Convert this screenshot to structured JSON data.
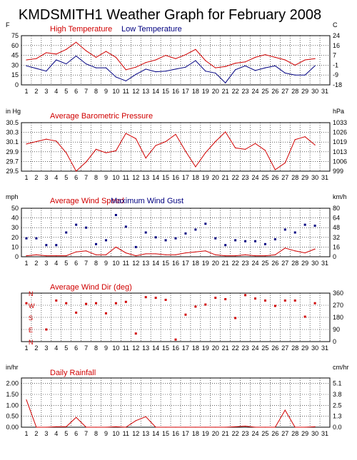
{
  "page": {
    "title": "KMDSMITH1 Weather Graph for February 2008"
  },
  "chart_data": [
    {
      "type": "line",
      "title": "",
      "legend": [
        {
          "name": "High Temperature",
          "color": "#d00000"
        },
        {
          "name": "Low Temperature",
          "color": "#000080"
        }
      ],
      "left_unit": "F",
      "right_unit": "C",
      "ylim": [
        0,
        75
      ],
      "y_ticks": [
        "0",
        "15",
        "30",
        "45",
        "60",
        "75"
      ],
      "right_ticks": [
        "-18",
        "-9",
        "-1",
        "7",
        "16",
        "24"
      ],
      "x": [
        1,
        2,
        3,
        4,
        5,
        6,
        7,
        8,
        9,
        10,
        11,
        12,
        13,
        14,
        15,
        16,
        17,
        18,
        19,
        20,
        21,
        22,
        23,
        24,
        25,
        26,
        27,
        28,
        29,
        30
      ],
      "x_ticks": [
        "1",
        "2",
        "3",
        "4",
        "5",
        "6",
        "7",
        "8",
        "9",
        "10",
        "11",
        "12",
        "13",
        "14",
        "15",
        "16",
        "17",
        "18",
        "19",
        "20",
        "21",
        "22",
        "23",
        "24",
        "25",
        "26",
        "27",
        "28",
        "29",
        "30",
        "31"
      ],
      "grid": true,
      "series": [
        {
          "name": "High Temperature",
          "color": "#d00000",
          "style": "line",
          "values": [
            38,
            40,
            49,
            47,
            54,
            65,
            52,
            42,
            51,
            42,
            23,
            27,
            34,
            38,
            45,
            40,
            46,
            54,
            37,
            26,
            28,
            33,
            35,
            42,
            46,
            42,
            38,
            30,
            38,
            40
          ]
        },
        {
          "name": "Low Temperature",
          "color": "#000080",
          "style": "line",
          "values": [
            29,
            25,
            21,
            38,
            32,
            44,
            32,
            26,
            26,
            12,
            6,
            16,
            24,
            20,
            21,
            24,
            27,
            37,
            21,
            18,
            3,
            23,
            29,
            22,
            26,
            29,
            18,
            15,
            15,
            29
          ]
        }
      ]
    },
    {
      "type": "line",
      "title": "",
      "legend": [
        {
          "name": "Average Barometric Pressure",
          "color": "#d00000"
        }
      ],
      "left_unit": "in Hg",
      "right_unit": "hPa",
      "ylim": [
        29.5,
        30.5
      ],
      "y_ticks": [
        "29.5",
        "29.7",
        "29.9",
        "30.1",
        "30.3",
        "30.5"
      ],
      "right_ticks": [
        "999",
        "1006",
        "1013",
        "1019",
        "1026",
        "1033"
      ],
      "x": [
        1,
        2,
        3,
        4,
        5,
        6,
        7,
        8,
        9,
        10,
        11,
        12,
        13,
        14,
        15,
        16,
        17,
        18,
        19,
        20,
        21,
        22,
        23,
        24,
        25,
        26,
        27,
        28,
        29,
        30
      ],
      "x_ticks": [
        "1",
        "2",
        "3",
        "4",
        "5",
        "6",
        "7",
        "8",
        "9",
        "10",
        "11",
        "12",
        "13",
        "14",
        "15",
        "16",
        "17",
        "18",
        "19",
        "20",
        "21",
        "22",
        "23",
        "24",
        "25",
        "26",
        "27",
        "28",
        "29",
        "30",
        "31"
      ],
      "grid": true,
      "series": [
        {
          "name": "Average Barometric Pressure",
          "color": "#d00000",
          "style": "line",
          "values": [
            30.06,
            30.11,
            30.16,
            30.12,
            29.88,
            29.5,
            29.69,
            29.95,
            29.88,
            29.92,
            30.28,
            30.17,
            29.77,
            30.03,
            30.11,
            30.26,
            29.91,
            29.59,
            29.88,
            30.11,
            30.31,
            29.98,
            29.95,
            30.07,
            29.93,
            29.53,
            29.67,
            30.15,
            30.21,
            30.04
          ]
        }
      ]
    },
    {
      "type": "line",
      "title": "",
      "legend": [
        {
          "name": "Average Wind Speed",
          "color": "#d00000"
        },
        {
          "name": "Maximum Wind Gust",
          "color": "#000080"
        }
      ],
      "left_unit": "mph",
      "right_unit": "km/h",
      "ylim": [
        0,
        50
      ],
      "y_ticks": [
        "0",
        "10",
        "20",
        "30",
        "40",
        "50"
      ],
      "right_ticks": [
        "0",
        "16",
        "32",
        "48",
        "64",
        "80"
      ],
      "x": [
        1,
        2,
        3,
        4,
        5,
        6,
        7,
        8,
        9,
        10,
        11,
        12,
        13,
        14,
        15,
        16,
        17,
        18,
        19,
        20,
        21,
        22,
        23,
        24,
        25,
        26,
        27,
        28,
        29,
        30
      ],
      "x_ticks": [
        "1",
        "2",
        "3",
        "4",
        "5",
        "6",
        "7",
        "8",
        "9",
        "10",
        "11",
        "12",
        "13",
        "14",
        "15",
        "16",
        "17",
        "18",
        "19",
        "20",
        "21",
        "22",
        "23",
        "24",
        "25",
        "26",
        "27",
        "28",
        "29",
        "30",
        "31"
      ],
      "grid": true,
      "series": [
        {
          "name": "Average Wind Speed",
          "color": "#d00000",
          "style": "line",
          "values": [
            1,
            2,
            1,
            1,
            1,
            5,
            6,
            2,
            2,
            10,
            4,
            1,
            3,
            3,
            2,
            2,
            4,
            5,
            6,
            2,
            1,
            1,
            2,
            1,
            1,
            2,
            9,
            6,
            4,
            8
          ]
        },
        {
          "name": "Maximum Wind Gust",
          "color": "#000080",
          "style": "dots",
          "values": [
            19,
            19,
            12,
            12,
            25,
            33,
            30,
            13,
            17,
            43,
            31,
            10,
            25,
            20,
            17,
            19,
            24,
            28,
            34,
            19,
            12,
            17,
            16,
            16,
            13,
            18,
            28,
            25,
            33,
            32
          ]
        }
      ]
    },
    {
      "type": "scatter",
      "title": "",
      "legend": [
        {
          "name": "Average Wind Dir (deg)",
          "color": "#d00000"
        }
      ],
      "left_unit": "",
      "right_unit": "",
      "ylim": [
        0,
        360
      ],
      "y_ticks": [],
      "compass_ticks": [
        "N",
        "W",
        "S",
        "E",
        "N"
      ],
      "right_ticks": [
        "0",
        "90",
        "180",
        "270",
        "360"
      ],
      "x": [
        1,
        2,
        3,
        4,
        5,
        6,
        7,
        8,
        9,
        10,
        11,
        12,
        13,
        14,
        15,
        16,
        17,
        18,
        19,
        20,
        21,
        22,
        23,
        24,
        25,
        26,
        27,
        28,
        29,
        30
      ],
      "x_ticks": [
        "1",
        "2",
        "3",
        "4",
        "5",
        "6",
        "7",
        "8",
        "9",
        "10",
        "11",
        "12",
        "13",
        "14",
        "15",
        "16",
        "17",
        "18",
        "19",
        "20",
        "21",
        "22",
        "23",
        "24",
        "25",
        "26",
        "27",
        "28",
        "29",
        "30",
        "31"
      ],
      "grid": true,
      "series": [
        {
          "name": "Average Wind Dir (deg)",
          "color": "#d00000",
          "style": "dots",
          "values": [
            285,
            null,
            90,
            305,
            285,
            215,
            280,
            285,
            210,
            285,
            295,
            60,
            330,
            325,
            310,
            15,
            200,
            260,
            275,
            325,
            315,
            175,
            345,
            320,
            305,
            265,
            305,
            305,
            185,
            285
          ]
        }
      ]
    },
    {
      "type": "line",
      "title": "",
      "legend": [
        {
          "name": "Daily Rainfall",
          "color": "#d00000"
        }
      ],
      "left_unit": "in/hr",
      "right_unit": "cm/hr",
      "ylim": [
        0,
        2.25
      ],
      "y_ticks": [
        "0.00",
        "0.50",
        "1.00",
        "1.50",
        "2.00"
      ],
      "y_tick_values": [
        0,
        0.5,
        1.0,
        1.5,
        2.0
      ],
      "right_ticks": [
        "0.0",
        "1.3",
        "2.5",
        "3.8",
        "5.1"
      ],
      "x": [
        1,
        2,
        3,
        4,
        5,
        6,
        7,
        8,
        9,
        10,
        11,
        12,
        13,
        14,
        15,
        16,
        17,
        18,
        19,
        20,
        21,
        22,
        23,
        24,
        25,
        26,
        27,
        28,
        29,
        30
      ],
      "x_ticks": [
        "1",
        "2",
        "3",
        "4",
        "5",
        "6",
        "7",
        "8",
        "9",
        "10",
        "11",
        "12",
        "13",
        "14",
        "15",
        "16",
        "17",
        "18",
        "19",
        "20",
        "21",
        "22",
        "23",
        "24",
        "25",
        "26",
        "27",
        "28",
        "29",
        "30",
        "31"
      ],
      "grid": true,
      "series": [
        {
          "name": "Daily Rainfall",
          "color": "#d00000",
          "style": "line",
          "values": [
            1.25,
            0,
            0,
            0.02,
            0.02,
            0.45,
            0,
            0,
            0,
            0.02,
            0,
            0.3,
            0.48,
            0,
            0,
            0,
            0,
            0,
            0,
            0,
            0,
            0.02,
            0.05,
            0,
            0,
            0,
            0.78,
            0,
            0,
            0.02
          ]
        }
      ]
    }
  ]
}
